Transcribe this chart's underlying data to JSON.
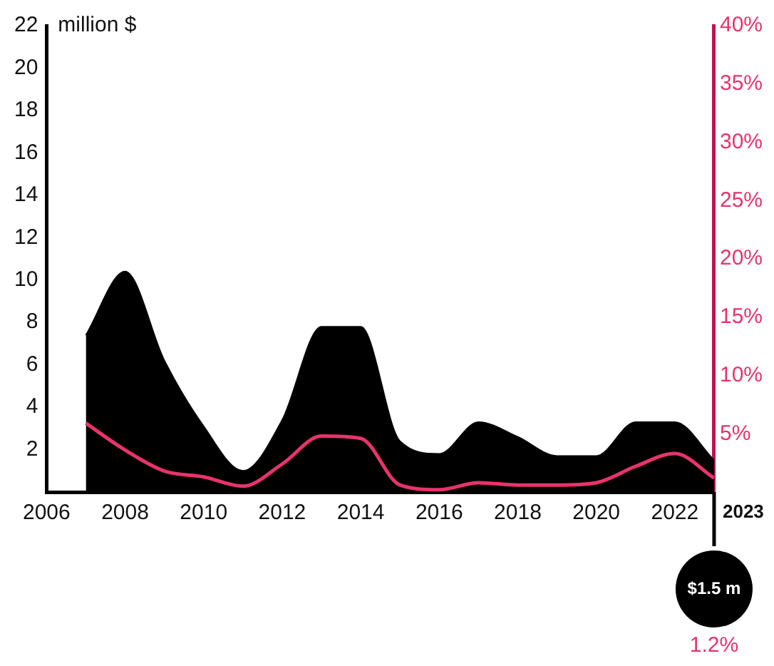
{
  "chart_data": {
    "type": "area",
    "ylabel": "million $",
    "x": [
      2007,
      2008,
      2009,
      2010,
      2011,
      2012,
      2013,
      2014,
      2015,
      2016,
      2017,
      2018,
      2019,
      2020,
      2021,
      2022,
      2023
    ],
    "xlim": [
      2006,
      2023
    ],
    "xticks": [
      2006,
      2008,
      2010,
      2012,
      2014,
      2016,
      2018,
      2020,
      2022
    ],
    "ylim": [
      0,
      22
    ],
    "yticks": [
      2,
      4,
      6,
      8,
      10,
      12,
      14,
      16,
      18,
      20,
      22
    ],
    "y2lim": [
      0,
      40
    ],
    "y2ticks": [
      {
        "value": 5,
        "label": "5%"
      },
      {
        "value": 10,
        "label": "10%"
      },
      {
        "value": 15,
        "label": "15%"
      },
      {
        "value": 20,
        "label": "20%"
      },
      {
        "value": 25,
        "label": "25%"
      },
      {
        "value": 30,
        "label": "30%"
      },
      {
        "value": 35,
        "label": "35%"
      },
      {
        "value": 40,
        "label": "40%"
      }
    ],
    "series": [
      {
        "type": "area",
        "color": "#000000",
        "values": [
          7.4,
          10.4,
          6.2,
          3.1,
          1.0,
          3.4,
          7.8,
          7.8,
          2.4,
          1.8,
          3.3,
          2.6,
          1.7,
          1.7,
          3.3,
          3.3,
          1.5
        ]
      },
      {
        "type": "line",
        "axis": "y2",
        "color": "#e8336b",
        "values": [
          5.9,
          3.6,
          1.8,
          1.3,
          0.5,
          2.4,
          4.8,
          4.6,
          0.6,
          0.2,
          0.8,
          0.6,
          0.6,
          0.8,
          2.2,
          3.3,
          1.2
        ]
      }
    ],
    "annotations": [
      "2023",
      "$1.5 m",
      "1.2%"
    ],
    "grid": false,
    "legend": false
  }
}
